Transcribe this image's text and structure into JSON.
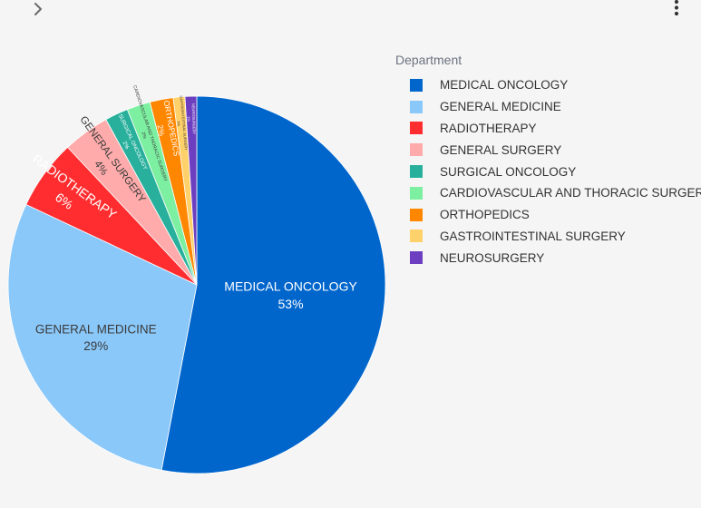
{
  "toolbar": {
    "expand_icon": "chevron-right-icon",
    "menu_icon": "more-vertical-icon"
  },
  "legend": {
    "title": "Department"
  },
  "chart_data": {
    "type": "pie",
    "legend_position": "right",
    "legend_title": "Department",
    "slices": [
      {
        "label": "MEDICAL ONCOLOGY",
        "value": 53,
        "pct_label": "53%",
        "color": "#0066cc"
      },
      {
        "label": "GENERAL MEDICINE",
        "value": 29,
        "pct_label": "29%",
        "color": "#8ac8fa"
      },
      {
        "label": "RADIOTHERAPY",
        "value": 6,
        "pct_label": "6%",
        "color": "#ff2d2f"
      },
      {
        "label": "GENERAL SURGERY",
        "value": 4,
        "pct_label": "4%",
        "color": "#ffabab"
      },
      {
        "label": "SURGICAL ONCOLOGY",
        "value": 2,
        "pct_label": "2%",
        "color": "#29b09d"
      },
      {
        "label": "CARDIOVASCULAR AND THORACIC SURGERY",
        "value": 2,
        "pct_label": "2%",
        "color": "#7defa1"
      },
      {
        "label": "ORTHOPEDICS",
        "value": 2,
        "pct_label": "2%",
        "color": "#ff8700"
      },
      {
        "label": "GASTROINTESTINAL SURGERY",
        "value": 1,
        "pct_label": "1%",
        "color": "#ffd16a"
      },
      {
        "label": "NEUROSURGERY",
        "value": 1,
        "pct_label": "1%",
        "color": "#6d3fc0"
      }
    ]
  }
}
